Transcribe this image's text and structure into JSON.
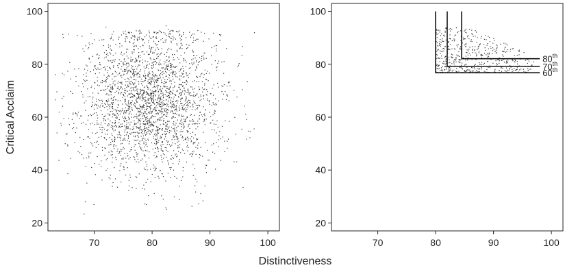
{
  "chart_data": [
    {
      "type": "scatter",
      "panel": "left",
      "xlim": [
        62,
        102
      ],
      "ylim": [
        17,
        103
      ],
      "x_ticks": [
        70,
        80,
        90,
        100
      ],
      "y_ticks": [
        20,
        40,
        60,
        80,
        100
      ],
      "ylabel": "Critical Acclaim",
      "xlabel": "Distinctiveness",
      "point_cloud": {
        "count": 2600,
        "x_center": 79.5,
        "x_spread": 6.2,
        "x_range": [
          63,
          99
        ],
        "y_center": 66,
        "y_spread": 14,
        "y_range": [
          20,
          97
        ],
        "note_upper_edge": "upper edge of the cloud near 90-97"
      }
    },
    {
      "type": "scatter",
      "panel": "right",
      "xlim": [
        62,
        102
      ],
      "ylim": [
        17,
        103
      ],
      "x_ticks": [
        70,
        80,
        90,
        100
      ],
      "y_ticks": [
        20,
        40,
        60,
        80,
        100
      ],
      "point_cloud": {
        "count": 520,
        "x_range": [
          80,
          97
        ],
        "y_range": [
          77,
          94
        ]
      },
      "threshold_lines": [
        {
          "percentile_label": "80",
          "superscript": "th",
          "x": 84.5,
          "y": 82.1
        },
        {
          "percentile_label": "70",
          "superscript": "th",
          "x": 82.0,
          "y": 79.2
        },
        {
          "percentile_label": "60",
          "superscript": "th",
          "x": 80.0,
          "y": 76.8
        }
      ],
      "threshold_line_top": 100,
      "threshold_line_right": 98
    }
  ],
  "shared_xlabel": "Distinctiveness",
  "colors": {
    "points": "#333333",
    "axes": "#222222",
    "lines": "#111111"
  }
}
